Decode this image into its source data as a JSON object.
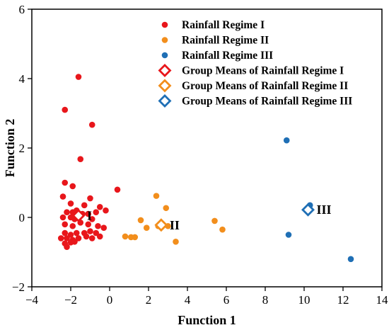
{
  "chart_data": {
    "type": "scatter",
    "title": "",
    "xlabel": "Function 1",
    "ylabel": "Function 2",
    "xlim": [
      -4,
      14
    ],
    "ylim": [
      -2,
      6
    ],
    "x_ticks": [
      -4,
      -2,
      0,
      2,
      4,
      6,
      8,
      10,
      12,
      14
    ],
    "y_ticks": [
      -2,
      0,
      2,
      4,
      6
    ],
    "grid": false,
    "legend_position": "top-right",
    "series": [
      {
        "name": "Rainfall Regime I",
        "color": "#e8161b",
        "marker": "filled-circle",
        "points": [
          [
            -1.6,
            4.05
          ],
          [
            -2.3,
            3.1
          ],
          [
            -0.9,
            2.67
          ],
          [
            -1.5,
            1.68
          ],
          [
            -2.3,
            1.0
          ],
          [
            -1.9,
            0.9
          ],
          [
            0.4,
            0.8
          ],
          [
            -2.4,
            0.6
          ],
          [
            -1.0,
            0.55
          ],
          [
            -2.0,
            0.4
          ],
          [
            -1.3,
            0.35
          ],
          [
            -0.5,
            0.3
          ],
          [
            -0.2,
            0.2
          ],
          [
            -2.2,
            0.15
          ],
          [
            -1.9,
            0.15
          ],
          [
            -1.7,
            0.2
          ],
          [
            -1.4,
            0.1
          ],
          [
            -1.1,
            0.1
          ],
          [
            -0.7,
            0.15
          ],
          [
            -2.4,
            0.0
          ],
          [
            -2.0,
            0.0
          ],
          [
            -1.8,
            -0.05
          ],
          [
            -0.9,
            -0.05
          ],
          [
            -2.3,
            -0.2
          ],
          [
            -1.9,
            -0.25
          ],
          [
            -1.5,
            -0.15
          ],
          [
            -1.1,
            -0.2
          ],
          [
            -0.6,
            -0.25
          ],
          [
            -0.3,
            -0.3
          ],
          [
            -2.3,
            -0.45
          ],
          [
            -2.0,
            -0.5
          ],
          [
            -1.7,
            -0.45
          ],
          [
            -1.3,
            -0.45
          ],
          [
            -1.0,
            -0.4
          ],
          [
            -0.7,
            -0.45
          ],
          [
            -2.5,
            -0.6
          ],
          [
            -2.2,
            -0.6
          ],
          [
            -1.9,
            -0.65
          ],
          [
            -1.6,
            -0.6
          ],
          [
            -1.2,
            -0.55
          ],
          [
            -0.9,
            -0.6
          ],
          [
            -0.5,
            -0.55
          ],
          [
            -2.3,
            -0.75
          ],
          [
            -2.0,
            -0.72
          ],
          [
            -1.8,
            -0.7
          ],
          [
            -2.2,
            -0.85
          ]
        ]
      },
      {
        "name": "Rainfall Regime II",
        "color": "#f28e1c",
        "marker": "filled-circle",
        "points": [
          [
            2.4,
            0.62
          ],
          [
            2.9,
            0.27
          ],
          [
            1.6,
            -0.08
          ],
          [
            2.5,
            -0.25
          ],
          [
            3.0,
            -0.25
          ],
          [
            1.9,
            -0.3
          ],
          [
            0.8,
            -0.55
          ],
          [
            1.1,
            -0.57
          ],
          [
            1.3,
            -0.57
          ],
          [
            3.4,
            -0.7
          ],
          [
            5.4,
            -0.1
          ],
          [
            5.8,
            -0.35
          ]
        ]
      },
      {
        "name": "Rainfall Regime III",
        "color": "#1f6fb5",
        "marker": "filled-circle",
        "points": [
          [
            9.1,
            2.22
          ],
          [
            10.3,
            0.35
          ],
          [
            9.2,
            -0.5
          ],
          [
            12.4,
            -1.2
          ]
        ]
      },
      {
        "name": "Group Means of Rainfall Regime I",
        "color": "#e8161b",
        "marker": "open-diamond",
        "points": [
          [
            -1.6,
            0.05
          ]
        ]
      },
      {
        "name": "Group Means of Rainfall Regime II",
        "color": "#f28e1c",
        "marker": "open-diamond",
        "points": [
          [
            2.65,
            -0.22
          ]
        ]
      },
      {
        "name": "Group Means of Rainfall Regime III",
        "color": "#1f6fb5",
        "marker": "open-diamond",
        "points": [
          [
            10.2,
            0.22
          ]
        ]
      }
    ],
    "annotations": [
      {
        "text": "I",
        "x": -1.6,
        "y": 0.05
      },
      {
        "text": "II",
        "x": 2.65,
        "y": -0.22
      },
      {
        "text": "III",
        "x": 10.2,
        "y": 0.22
      }
    ]
  }
}
